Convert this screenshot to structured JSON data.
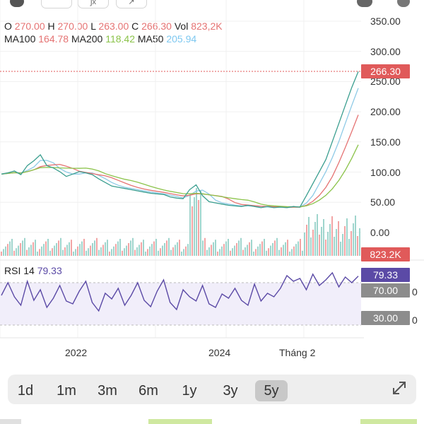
{
  "ohlc": {
    "o_label": "O",
    "o": "270.00",
    "h_label": "H",
    "h": "270.00",
    "l_label": "L",
    "l": "263.00",
    "c_label": "C",
    "c": "266.30",
    "vol_label": "Vol",
    "vol": "823,2K"
  },
  "ma": {
    "ma100_label": "MA100",
    "ma100": "164.78",
    "ma200_label": "MA200",
    "ma200": "118.42",
    "ma50_label": "MA50",
    "ma50": "205.94"
  },
  "price_axis": [
    "350.00",
    "300.00",
    "250.00",
    "200.00",
    "150.00",
    "100.00",
    "50.00",
    "0.00"
  ],
  "price_tag": "266.30",
  "volume_tag": "823.2K",
  "rsi": {
    "label": "RSI 14",
    "value": "79.33",
    "upper": "70.00",
    "lower": "30.00",
    "partial_axis_a": "0",
    "partial_axis_b": "0"
  },
  "time_axis": [
    "2022",
    "2024",
    "Tháng 2"
  ],
  "periods": [
    "1d",
    "1m",
    "3m",
    "6m",
    "1y",
    "3y",
    "5y"
  ],
  "active_period": "5y",
  "colors": {
    "up": "#26a69a",
    "down": "#ef5350",
    "price_tag": "#e05a5a",
    "rsi": "#5b4aa6",
    "ma50": "#8ecae6",
    "ma100": "#e57373",
    "ma200": "#8bc34a"
  },
  "icons": {
    "expand": "expand-icon",
    "settings": "gear-icon",
    "share": "share-icon"
  },
  "chart_data": {
    "type": "line",
    "price_series": [
      96,
      98,
      101,
      95,
      110,
      118,
      128,
      110,
      106,
      100,
      92,
      96,
      100,
      98,
      95,
      88,
      82,
      76,
      74,
      72,
      70,
      68,
      66,
      64,
      63,
      62,
      58,
      56,
      55,
      70,
      78,
      60,
      50,
      48,
      46,
      44,
      43,
      42,
      44,
      42,
      40,
      42,
      40,
      41,
      40,
      42,
      41,
      60,
      80,
      100,
      120,
      150,
      180,
      210,
      240,
      266.3
    ],
    "ylim": [
      0,
      350
    ],
    "rsi_series": [
      52,
      70,
      50,
      38,
      72,
      45,
      60,
      35,
      48,
      66,
      44,
      40,
      58,
      72,
      42,
      30,
      55,
      47,
      62,
      38,
      52,
      70,
      45,
      36,
      58,
      74,
      42,
      32,
      60,
      50,
      44,
      66,
      40,
      35,
      54,
      48,
      62,
      45,
      38,
      68,
      44,
      55,
      50,
      62,
      80,
      72,
      76,
      60,
      82,
      66,
      74,
      84,
      64,
      78,
      70,
      79.33
    ],
    "rsi_ylim": [
      0,
      100
    ]
  }
}
